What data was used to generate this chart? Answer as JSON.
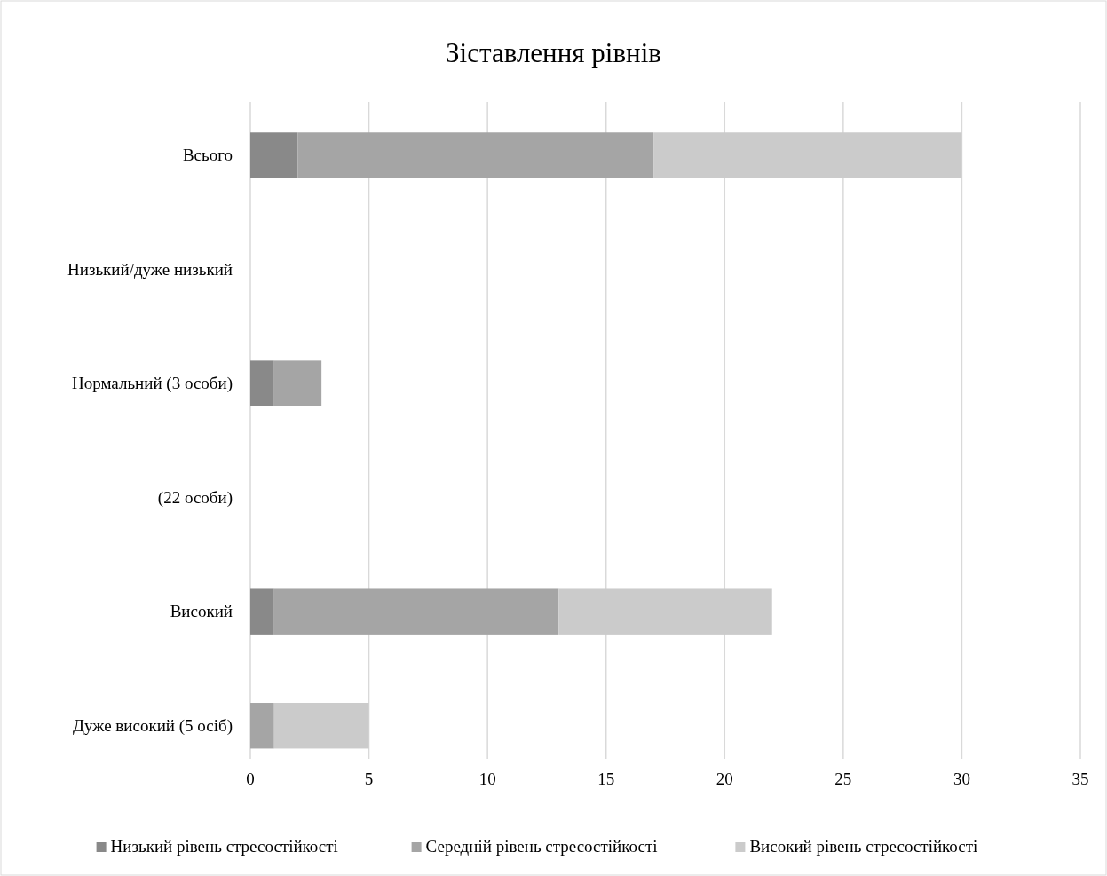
{
  "chart_data": {
    "type": "bar",
    "orientation": "horizontal",
    "stacked": true,
    "title": "Зіставлення рівнів",
    "categories": [
      "Всього",
      "Низький/дуже низький",
      "Нормальний (3 особи)",
      "(22 особи)",
      "Високий",
      "Дуже високий (5 осіб)"
    ],
    "series": [
      {
        "name": "Низький рівень стресостійкості",
        "color": "#898989",
        "values": [
          2,
          null,
          1,
          null,
          1,
          0
        ]
      },
      {
        "name": "Середній рівень стресостійкості",
        "color": "#a5a5a5",
        "values": [
          15,
          null,
          2,
          null,
          12,
          1
        ]
      },
      {
        "name": "Високий рівень стресостійкості",
        "color": "#cbcbcb",
        "values": [
          13,
          null,
          0,
          null,
          9,
          4
        ]
      }
    ],
    "xlim": [
      0,
      35
    ],
    "xticks": [
      0,
      5,
      10,
      15,
      20,
      25,
      30,
      35
    ],
    "grid": "x",
    "legend": "bottom"
  }
}
